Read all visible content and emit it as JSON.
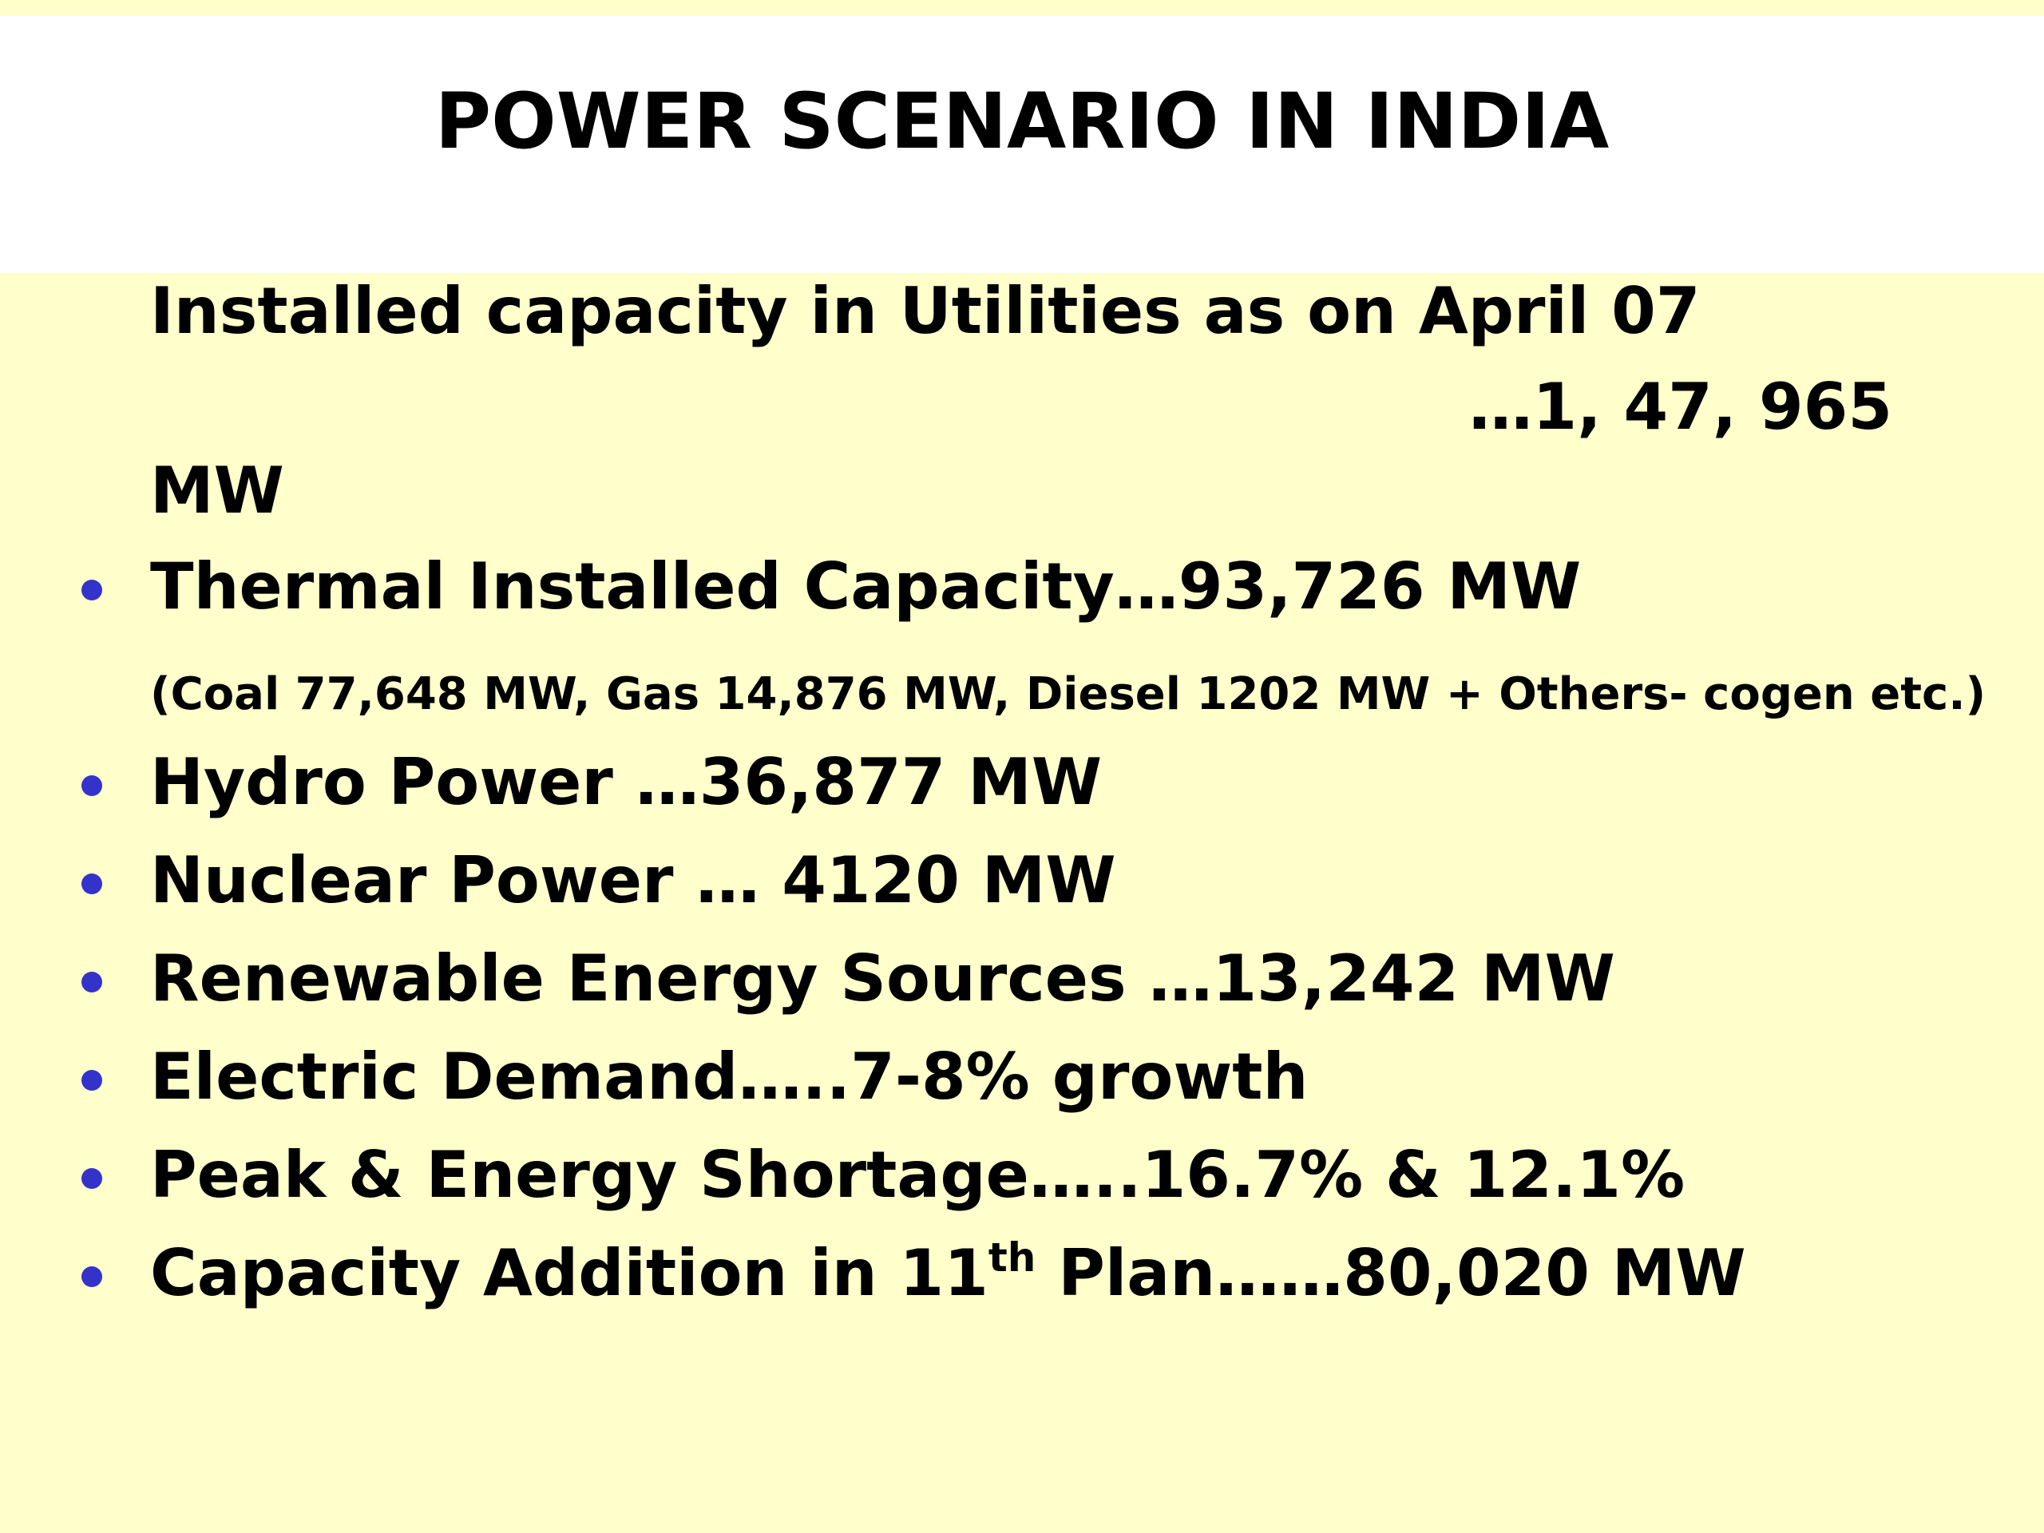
{
  "slide": {
    "title": "POWER SCENARIO IN INDIA",
    "intro": {
      "label": "Installed capacity in Utilities as on April 07",
      "value": "…1, 47, 965",
      "unit": "MW"
    },
    "bullets": [
      {
        "text": "Thermal Installed Capacity…93,726 MW"
      },
      {
        "text": "Hydro Power …36,877 MW"
      },
      {
        "text": "Nuclear Power … 4120 MW"
      },
      {
        "text": "Renewable Energy Sources …13,242 MW"
      },
      {
        "text": "Electric Demand…..7-8% growth"
      },
      {
        "text": "Peak & Energy Shortage…..16.7% & 12.1%"
      },
      {
        "prefix": "Capacity Addition in 11",
        "sup": "th",
        "suffix": " Plan……80,020 MW"
      }
    ],
    "thermal_breakdown": "(Coal 77,648 MW, Gas 14,876 MW, Diesel 1202 MW + Others- cogen etc.)"
  },
  "colors": {
    "background": "#ffffcc",
    "title_band": "#ffffff",
    "bullet": "#3333cc",
    "text": "#000000"
  }
}
